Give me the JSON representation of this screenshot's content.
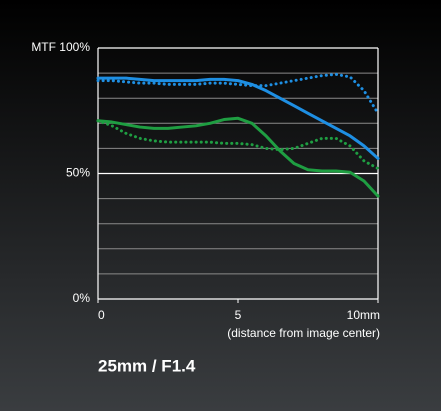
{
  "chart_data": {
    "type": "line",
    "caption": "25mm / F1.4",
    "xlabel": "(distance from image center)",
    "x": [
      0,
      0.5,
      1,
      1.5,
      2,
      2.5,
      3,
      3.5,
      4,
      4.5,
      5,
      5.5,
      6,
      6.5,
      7,
      7.5,
      8,
      8.5,
      9,
      9.5,
      10
    ],
    "xlim": [
      0,
      10
    ],
    "xticks": [
      0,
      5,
      {
        "value": 10,
        "label": "10mm"
      }
    ],
    "ylim": [
      0,
      100
    ],
    "yticks": [
      {
        "value": 0,
        "label": "0%"
      },
      {
        "value": 50,
        "label": "50%"
      },
      {
        "value": 100,
        "label": "MTF 100%"
      }
    ],
    "ygrid": [
      10,
      20,
      30,
      40,
      60,
      70,
      80,
      90,
      100
    ],
    "series": [
      {
        "color": "#1e8fe3",
        "style": "solid",
        "values": [
          88,
          88,
          88,
          87.5,
          87,
          87,
          87,
          87,
          87.5,
          87.5,
          87,
          85.5,
          83,
          80,
          77,
          74,
          71,
          68,
          65,
          61,
          56
        ]
      },
      {
        "color": "#1e8fe3",
        "style": "dotted",
        "values": [
          87,
          87,
          86.5,
          86,
          86,
          85.5,
          85.5,
          85.5,
          86,
          86,
          85.5,
          85,
          85,
          86,
          87,
          88,
          89,
          89.5,
          88.5,
          83,
          74
        ]
      },
      {
        "color": "#1f9e42",
        "style": "solid",
        "values": [
          71,
          70.5,
          69.5,
          68.5,
          68,
          68,
          68.5,
          69,
          70,
          71.5,
          72,
          70,
          65,
          59,
          54,
          51.5,
          51,
          51,
          50.5,
          47,
          41
        ]
      },
      {
        "color": "#1f9e42",
        "style": "dotted",
        "values": [
          71,
          69,
          66,
          64,
          63,
          62.5,
          62.5,
          62.5,
          62.5,
          62,
          62,
          61.5,
          60,
          59.5,
          60,
          62,
          64,
          64,
          61,
          55,
          52
        ]
      }
    ]
  }
}
